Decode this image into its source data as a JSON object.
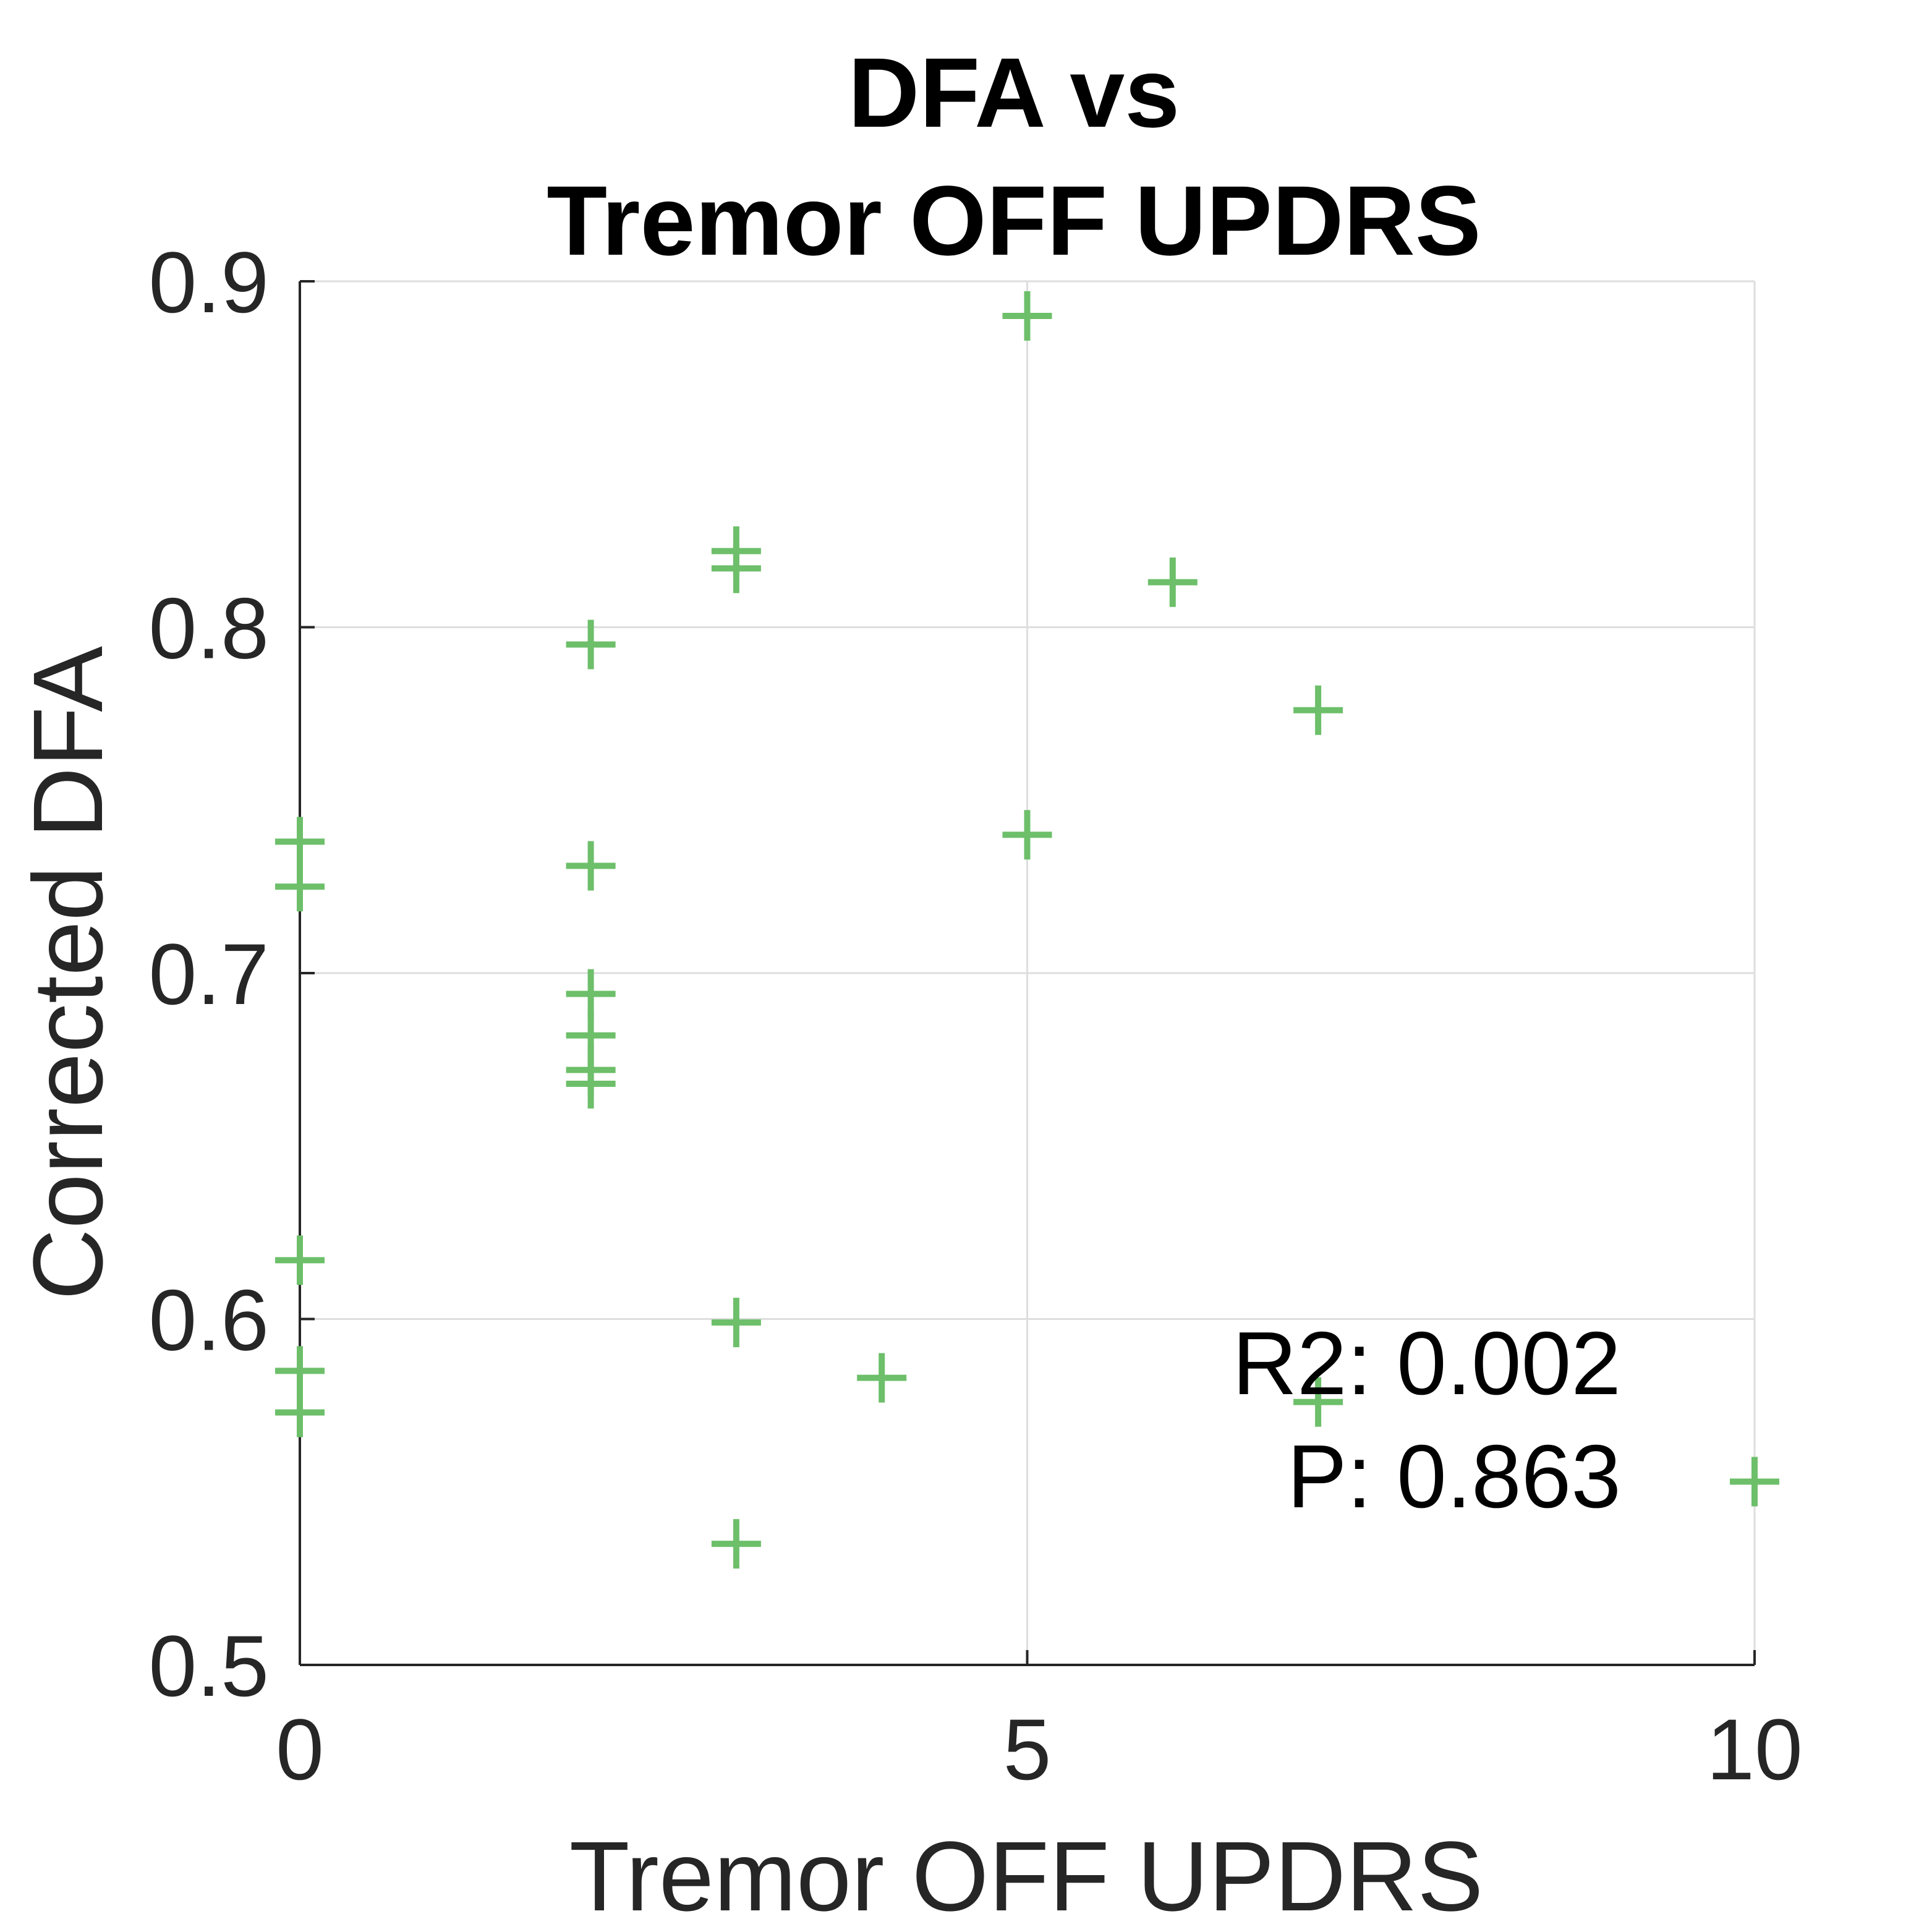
{
  "chart_data": {
    "type": "scatter",
    "title": [
      "DFA vs",
      "Tremor OFF UPDRS"
    ],
    "xlabel": "Tremor OFF UPDRS",
    "ylabel": "Corrected DFA",
    "xlim": [
      0,
      10
    ],
    "ylim": [
      0.5,
      0.9
    ],
    "xticks": [
      "0",
      "5",
      "10"
    ],
    "yticks": [
      "0.5",
      "0.6",
      "0.7",
      "0.8",
      "0.9"
    ],
    "grid": true,
    "marker": "+",
    "marker_color": "#6dbf6a",
    "series": [
      {
        "points": [
          {
            "x": 0,
            "y": 0.738
          },
          {
            "x": 0,
            "y": 0.725
          },
          {
            "x": 0,
            "y": 0.617
          },
          {
            "x": 0,
            "y": 0.585
          },
          {
            "x": 0,
            "y": 0.573
          },
          {
            "x": 2,
            "y": 0.795
          },
          {
            "x": 2,
            "y": 0.731
          },
          {
            "x": 2,
            "y": 0.694
          },
          {
            "x": 2,
            "y": 0.682
          },
          {
            "x": 2,
            "y": 0.672
          },
          {
            "x": 2,
            "y": 0.668
          },
          {
            "x": 3,
            "y": 0.822
          },
          {
            "x": 3,
            "y": 0.817
          },
          {
            "x": 3,
            "y": 0.599
          },
          {
            "x": 3,
            "y": 0.535
          },
          {
            "x": 4,
            "y": 0.583
          },
          {
            "x": 5,
            "y": 0.89
          },
          {
            "x": 5,
            "y": 0.74
          },
          {
            "x": 6,
            "y": 0.813
          },
          {
            "x": 7,
            "y": 0.776
          },
          {
            "x": 7,
            "y": 0.576
          },
          {
            "x": 10,
            "y": 0.553
          }
        ]
      }
    ],
    "annotations": [
      "R2: 0.002",
      "P: 0.863"
    ]
  }
}
